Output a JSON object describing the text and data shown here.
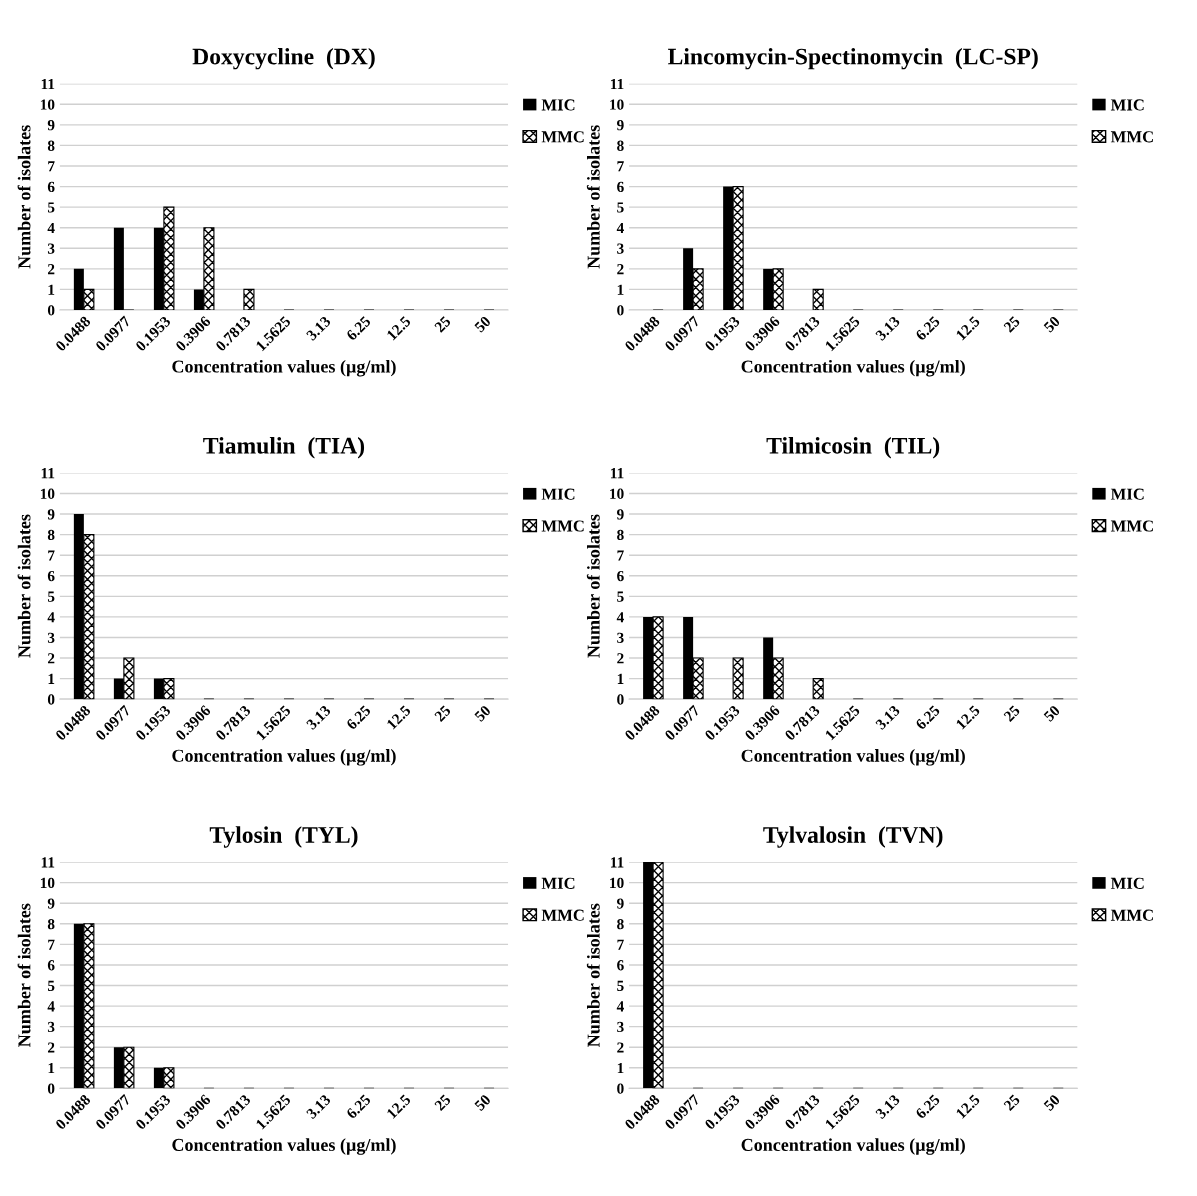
{
  "chart_data": [
    {
      "type": "bar",
      "title": "Doxycycline  (DX)",
      "xlabel": "Concentration values (µg/ml)",
      "ylabel": "Number of isolates",
      "categories": [
        "0.0488",
        "0.0977",
        "0.1953",
        "0.3906",
        "0.7813",
        "1.5625",
        "3.13",
        "6.25",
        "12.5",
        "25",
        "50"
      ],
      "ylim": [
        0,
        11
      ],
      "yticks": [
        0,
        1,
        2,
        3,
        4,
        5,
        6,
        7,
        8,
        9,
        10,
        11
      ],
      "grid": "y",
      "legend": "top right",
      "series": [
        {
          "name": "MIC",
          "color": "#000000",
          "values": [
            2,
            4,
            4,
            1,
            0,
            0,
            0,
            0,
            0,
            0,
            0
          ]
        },
        {
          "name": "MMC",
          "color": "#000000",
          "values": [
            1,
            0,
            5,
            4,
            1,
            0,
            0,
            0,
            0,
            0,
            0
          ]
        }
      ]
    },
    {
      "type": "bar",
      "title": "Lincomycin-Spectinomycin  (LC-SP)",
      "xlabel": "Concentration values (µg/ml)",
      "ylabel": "Number of isolates",
      "categories": [
        "0.0488",
        "0.0977",
        "0.1953",
        "0.3906",
        "0.7813",
        "1.5625",
        "3.13",
        "6.25",
        "12.5",
        "25",
        "50"
      ],
      "ylim": [
        0,
        11
      ],
      "yticks": [
        0,
        1,
        2,
        3,
        4,
        5,
        6,
        7,
        8,
        9,
        10,
        11
      ],
      "grid": "y",
      "legend": "top right",
      "series": [
        {
          "name": "MIC",
          "color": "#000000",
          "values": [
            0,
            3,
            6,
            2,
            0,
            0,
            0,
            0,
            0,
            0,
            0
          ]
        },
        {
          "name": "MMC",
          "color": "#000000",
          "values": [
            0,
            2,
            6,
            2,
            1,
            0,
            0,
            0,
            0,
            0,
            0
          ]
        }
      ]
    },
    {
      "type": "bar",
      "title": "Tiamulin  (TIA)",
      "xlabel": "Concentration values (µg/ml)",
      "ylabel": "Number of isolates",
      "categories": [
        "0.0488",
        "0.0977",
        "0.1953",
        "0.3906",
        "0.7813",
        "1.5625",
        "3.13",
        "6.25",
        "12.5",
        "25",
        "50"
      ],
      "ylim": [
        0,
        11
      ],
      "yticks": [
        0,
        1,
        2,
        3,
        4,
        5,
        6,
        7,
        8,
        9,
        10,
        11
      ],
      "grid": "y",
      "legend": "top right",
      "series": [
        {
          "name": "MIC",
          "color": "#000000",
          "values": [
            9,
            1,
            1,
            0,
            0,
            0,
            0,
            0,
            0,
            0,
            0
          ]
        },
        {
          "name": "MMC",
          "color": "#000000",
          "values": [
            8,
            2,
            1,
            0,
            0,
            0,
            0,
            0,
            0,
            0,
            0
          ]
        }
      ]
    },
    {
      "type": "bar",
      "title": "Tilmicosin  (TIL)",
      "xlabel": "Concentration values (µg/ml)",
      "ylabel": "Number of isolates",
      "categories": [
        "0.0488",
        "0.0977",
        "0.1953",
        "0.3906",
        "0.7813",
        "1.5625",
        "3.13",
        "6.25",
        "12.5",
        "25",
        "50"
      ],
      "ylim": [
        0,
        11
      ],
      "yticks": [
        0,
        1,
        2,
        3,
        4,
        5,
        6,
        7,
        8,
        9,
        10,
        11
      ],
      "grid": "y",
      "legend": "top right",
      "series": [
        {
          "name": "MIC",
          "color": "#000000",
          "values": [
            4,
            4,
            0,
            3,
            0,
            0,
            0,
            0,
            0,
            0,
            0
          ]
        },
        {
          "name": "MMC",
          "color": "#000000",
          "values": [
            4,
            2,
            2,
            2,
            1,
            0,
            0,
            0,
            0,
            0,
            0
          ]
        }
      ]
    },
    {
      "type": "bar",
      "title": "Tylosin  (TYL)",
      "xlabel": "Concentration values (µg/ml)",
      "ylabel": "Number of isolates",
      "categories": [
        "0.0488",
        "0.0977",
        "0.1953",
        "0.3906",
        "0.7813",
        "1.5625",
        "3.13",
        "6.25",
        "12.5",
        "25",
        "50"
      ],
      "ylim": [
        0,
        11
      ],
      "yticks": [
        0,
        1,
        2,
        3,
        4,
        5,
        6,
        7,
        8,
        9,
        10,
        11
      ],
      "grid": "y",
      "legend": "top right",
      "series": [
        {
          "name": "MIC",
          "color": "#000000",
          "values": [
            8,
            2,
            1,
            0,
            0,
            0,
            0,
            0,
            0,
            0,
            0
          ]
        },
        {
          "name": "MMC",
          "color": "#000000",
          "values": [
            8,
            2,
            1,
            0,
            0,
            0,
            0,
            0,
            0,
            0,
            0
          ]
        }
      ]
    },
    {
      "type": "bar",
      "title": "Tylvalosin  (TVN)",
      "xlabel": "Concentration values (µg/ml)",
      "ylabel": "Number of isolates",
      "categories": [
        "0.0488",
        "0.0977",
        "0.1953",
        "0.3906",
        "0.7813",
        "1.5625",
        "3.13",
        "6.25",
        "12.5",
        "25",
        "50"
      ],
      "ylim": [
        0,
        11
      ],
      "yticks": [
        0,
        1,
        2,
        3,
        4,
        5,
        6,
        7,
        8,
        9,
        10,
        11
      ],
      "grid": "y",
      "legend": "top right",
      "series": [
        {
          "name": "MIC",
          "color": "#000000",
          "values": [
            11,
            0,
            0,
            0,
            0,
            0,
            0,
            0,
            0,
            0,
            0
          ]
        },
        {
          "name": "MMC",
          "color": "#000000",
          "values": [
            11,
            0,
            0,
            0,
            0,
            0,
            0,
            0,
            0,
            0,
            0
          ]
        }
      ]
    }
  ]
}
